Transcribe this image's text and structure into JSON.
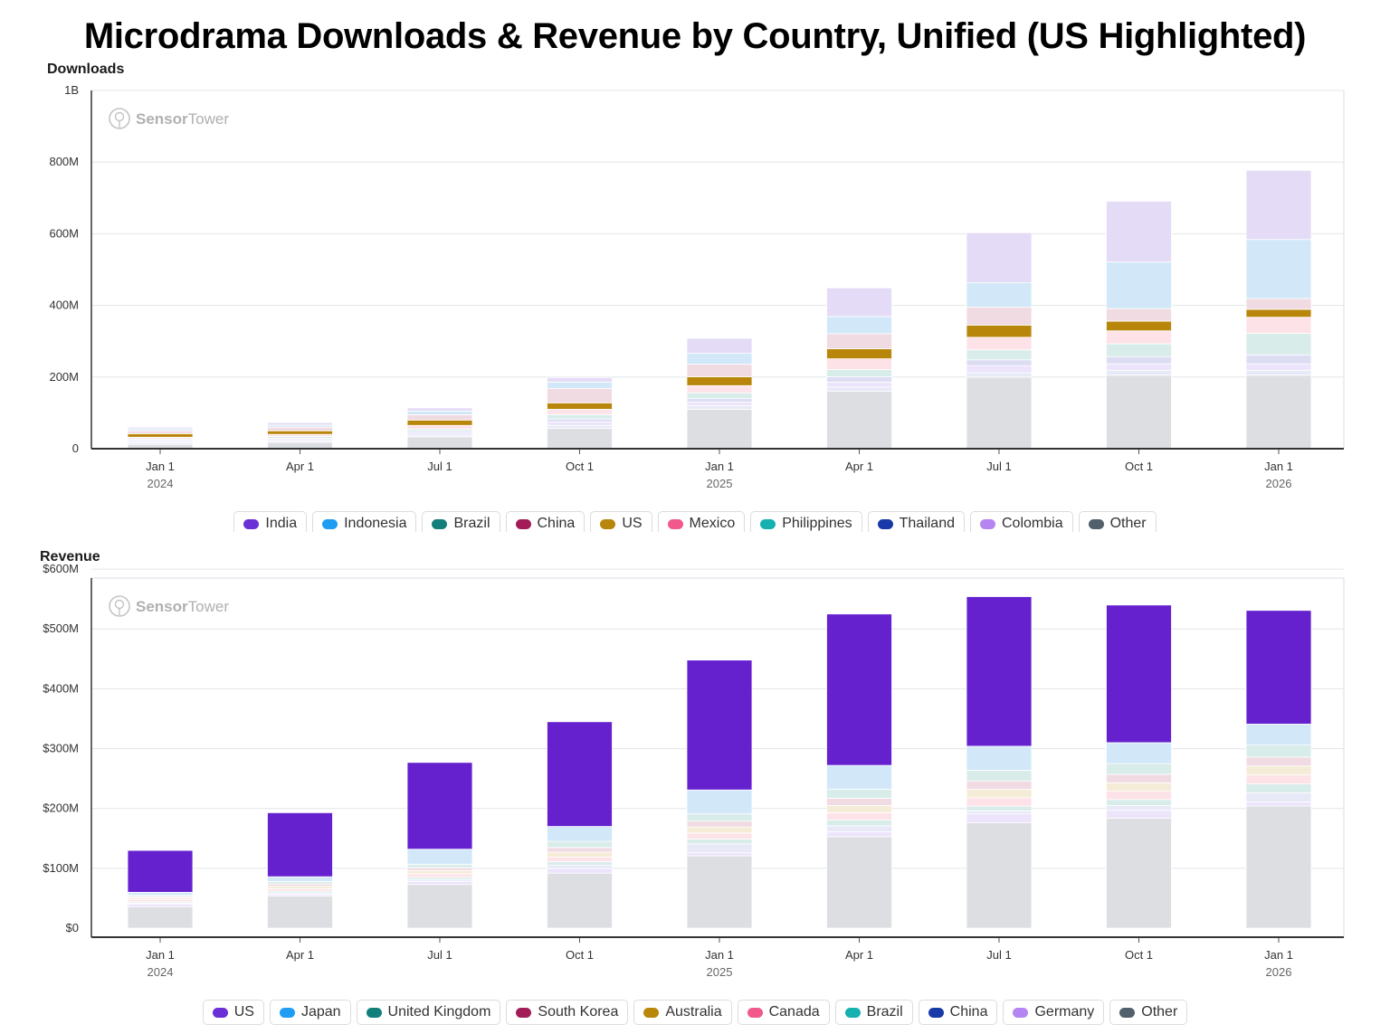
{
  "title": "Microdrama Downloads & Revenue by Country, Unified (US Highlighted)",
  "watermark": {
    "brand_a": "Sensor",
    "brand_b": "Tower"
  },
  "chart_data": [
    {
      "type": "bar",
      "stacked": true,
      "title": "Downloads",
      "categories": [
        "Jan 1 2024",
        "Apr 1 2024",
        "Jul 1 2024",
        "Oct 1 2024",
        "Jan 1 2025",
        "Apr 1 2025",
        "Jul 1 2025",
        "Oct 1 2025",
        "Jan 1 2026"
      ],
      "x_tick_labels": [
        "Jan 1",
        "Apr 1",
        "Jul 1",
        "Oct 1",
        "Jan 1",
        "Apr 1",
        "Jul 1",
        "Oct 1",
        "Jan 1"
      ],
      "x_tick_years": [
        "2024",
        "",
        "",
        "",
        "2025",
        "",
        "",
        "",
        "2026"
      ],
      "y_ticks": [
        {
          "value": 0,
          "label": "0"
        },
        {
          "value": 200,
          "label": "200M"
        },
        {
          "value": 400,
          "label": "400M"
        },
        {
          "value": 600,
          "label": "600M"
        },
        {
          "value": 800,
          "label": "800M"
        },
        {
          "value": 1000,
          "label": "1B"
        }
      ],
      "units": "millions",
      "ylim": [
        0,
        1000
      ],
      "grid": true,
      "legend_position": "bottom",
      "highlight": "US",
      "series": [
        {
          "name": "Other",
          "color": "#dcdee2",
          "values": [
            12,
            18,
            33,
            57,
            110,
            160,
            200,
            205,
            205
          ]
        },
        {
          "name": "Thailand",
          "color": "#e7e9f7",
          "values": [
            4,
            4,
            5,
            8,
            10,
            12,
            12,
            14,
            14
          ]
        },
        {
          "name": "Colombia",
          "color": "#ece4fb",
          "values": [
            4,
            4,
            6,
            10,
            10,
            14,
            20,
            18,
            18
          ]
        },
        {
          "name": "Philippines",
          "color": "#dcdcf3",
          "values": [
            3,
            3,
            5,
            8,
            10,
            15,
            16,
            20,
            25
          ]
        },
        {
          "name": "Brazil",
          "color": "#d8ecea",
          "values": [
            4,
            5,
            6,
            12,
            16,
            20,
            28,
            36,
            60
          ]
        },
        {
          "name": "Mexico",
          "color": "#fde2e8",
          "values": [
            5,
            6,
            10,
            15,
            20,
            30,
            35,
            36,
            45
          ]
        },
        {
          "name": "US",
          "color": "#b8860b",
          "values": [
            10,
            10,
            15,
            18,
            25,
            28,
            34,
            27,
            22
          ]
        },
        {
          "name": "China",
          "color": "#f1dbe3",
          "values": [
            8,
            10,
            15,
            40,
            35,
            42,
            50,
            35,
            30
          ]
        },
        {
          "name": "Indonesia",
          "color": "#d2e8f8",
          "values": [
            5,
            6,
            10,
            18,
            30,
            48,
            68,
            130,
            165
          ]
        },
        {
          "name": "India",
          "color": "#e4dbf6",
          "values": [
            5,
            7,
            9,
            13,
            42,
            80,
            140,
            170,
            193
          ]
        }
      ],
      "legend": [
        {
          "name": "India",
          "color": "#6b2fd6"
        },
        {
          "name": "Indonesia",
          "color": "#1f9df2"
        },
        {
          "name": "Brazil",
          "color": "#137f7a"
        },
        {
          "name": "China",
          "color": "#a21d58"
        },
        {
          "name": "US",
          "color": "#b8860b"
        },
        {
          "name": "Mexico",
          "color": "#f1588b"
        },
        {
          "name": "Philippines",
          "color": "#16b0b1"
        },
        {
          "name": "Thailand",
          "color": "#1939a9"
        },
        {
          "name": "Colombia",
          "color": "#b585f2"
        },
        {
          "name": "Other",
          "color": "#52606b"
        }
      ]
    },
    {
      "type": "bar",
      "stacked": true,
      "title": "Revenue",
      "categories": [
        "Jan 1 2024",
        "Apr 1 2024",
        "Jul 1 2024",
        "Oct 1 2024",
        "Jan 1 2025",
        "Apr 1 2025",
        "Jul 1 2025",
        "Oct 1 2025",
        "Jan 1 2026"
      ],
      "x_tick_labels": [
        "Jan 1",
        "Apr 1",
        "Jul 1",
        "Oct 1",
        "Jan 1",
        "Apr 1",
        "Jul 1",
        "Oct 1",
        "Jan 1"
      ],
      "x_tick_years": [
        "2024",
        "",
        "",
        "",
        "2025",
        "",
        "",
        "",
        "2026"
      ],
      "y_ticks": [
        {
          "value": 0,
          "label": "$0"
        },
        {
          "value": 100,
          "label": "$100M"
        },
        {
          "value": 200,
          "label": "$200M"
        },
        {
          "value": 300,
          "label": "$300M"
        },
        {
          "value": 400,
          "label": "$400M"
        },
        {
          "value": 500,
          "label": "$500M"
        },
        {
          "value": 600,
          "label": "$600M"
        }
      ],
      "units": "millions USD",
      "ylim": [
        -15,
        585
      ],
      "grid": true,
      "legend_position": "bottom",
      "highlight": "US",
      "series": [
        {
          "name": "Other",
          "color": "#dcdee2",
          "values": [
            36,
            54,
            73,
            92,
            121,
            153,
            176,
            184,
            204
          ]
        },
        {
          "name": "Germany",
          "color": "#ece4fb",
          "values": [
            4,
            3,
            5,
            8,
            5,
            8,
            15,
            13,
            7
          ]
        },
        {
          "name": "China",
          "color": "#e7e9f7",
          "values": [
            2,
            2,
            3,
            5,
            15,
            10,
            5,
            8,
            15
          ]
        },
        {
          "name": "Brazil",
          "color": "#d8ecea",
          "values": [
            2,
            3,
            4,
            6,
            8,
            10,
            8,
            10,
            15
          ]
        },
        {
          "name": "Canada",
          "color": "#fde2e8",
          "values": [
            4,
            4,
            6,
            8,
            10,
            12,
            14,
            14,
            15
          ]
        },
        {
          "name": "Australia",
          "color": "#f4ecd6",
          "values": [
            3,
            4,
            5,
            8,
            10,
            12,
            14,
            14,
            15
          ]
        },
        {
          "name": "South Korea",
          "color": "#f1dbe3",
          "values": [
            2,
            4,
            5,
            8,
            10,
            12,
            14,
            14,
            15
          ]
        },
        {
          "name": "United Kingdom",
          "color": "#d8ecea",
          "values": [
            2,
            4,
            6,
            10,
            12,
            15,
            18,
            18,
            20
          ]
        },
        {
          "name": "Japan",
          "color": "#d2e8f8",
          "values": [
            5,
            8,
            25,
            25,
            40,
            40,
            40,
            35,
            35
          ]
        },
        {
          "name": "US",
          "color": "#6621cf",
          "values": [
            70,
            107,
            145,
            175,
            217,
            253,
            250,
            230,
            190
          ]
        }
      ],
      "legend": [
        {
          "name": "US",
          "color": "#6b2fd6"
        },
        {
          "name": "Japan",
          "color": "#1f9df2"
        },
        {
          "name": "United Kingdom",
          "color": "#137f7a"
        },
        {
          "name": "South Korea",
          "color": "#a21d58"
        },
        {
          "name": "Australia",
          "color": "#b8860b"
        },
        {
          "name": "Canada",
          "color": "#f1588b"
        },
        {
          "name": "Brazil",
          "color": "#16b0b1"
        },
        {
          "name": "China",
          "color": "#1939a9"
        },
        {
          "name": "Germany",
          "color": "#b585f2"
        },
        {
          "name": "Other",
          "color": "#52606b"
        }
      ]
    }
  ]
}
